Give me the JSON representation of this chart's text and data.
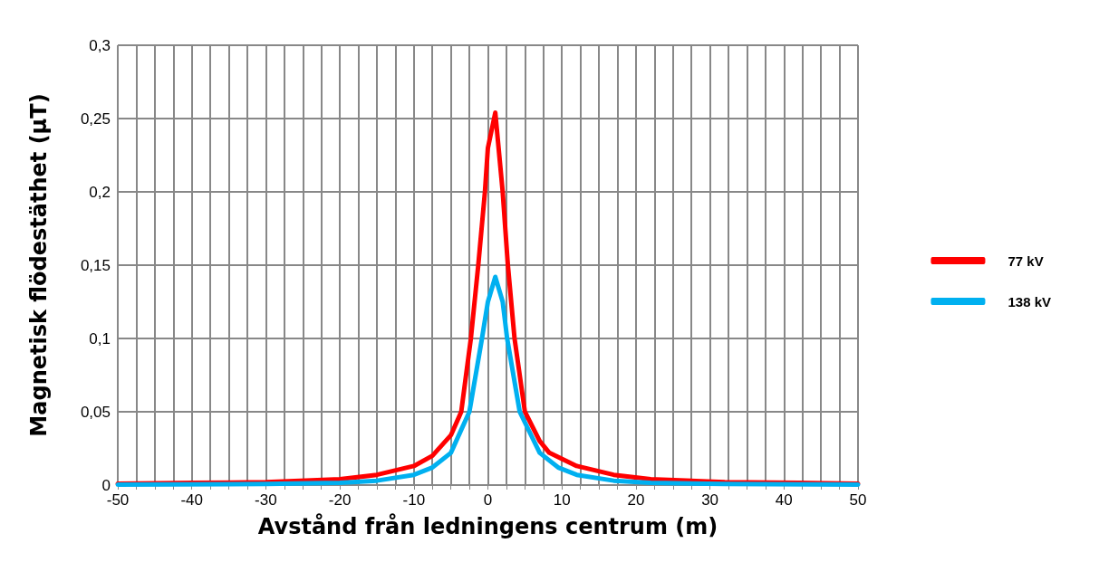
{
  "chart_data": {
    "type": "line",
    "xlabel": "Avstånd från ledningens centrum (m)",
    "ylabel": "Magnetisk flödestäthet (µT)",
    "xlim": [
      -50,
      50
    ],
    "xticks": [
      -50,
      {
        "value": -47.5,
        "label": null
      },
      {
        "value": -45,
        "label": null
      },
      {
        "value": -42.5,
        "label": null
      },
      -40,
      {
        "value": -37.5,
        "label": null
      },
      {
        "value": -35,
        "label": null
      },
      {
        "value": -32.5,
        "label": null
      },
      -30,
      {
        "value": -27.5,
        "label": null
      },
      {
        "value": -25,
        "label": null
      },
      {
        "value": -22.5,
        "label": null
      },
      -20,
      {
        "value": -17.5,
        "label": null
      },
      {
        "value": -15,
        "label": null
      },
      {
        "value": -12.5,
        "label": null
      },
      -10,
      {
        "value": -7.5,
        "label": null
      },
      {
        "value": -5,
        "label": null
      },
      {
        "value": -2.5,
        "label": null
      },
      0,
      {
        "value": 2.5,
        "label": null
      },
      {
        "value": 5,
        "label": null
      },
      {
        "value": 7.5,
        "label": null
      },
      10,
      {
        "value": 12.5,
        "label": null
      },
      {
        "value": 15,
        "label": null
      },
      {
        "value": 17.5,
        "label": null
      },
      20,
      {
        "value": 22.5,
        "label": null
      },
      {
        "value": 25,
        "label": null
      },
      {
        "value": 27.5,
        "label": null
      },
      30,
      {
        "value": 32.5,
        "label": null
      },
      {
        "value": 35,
        "label": null
      },
      {
        "value": 37.5,
        "label": null
      },
      40,
      {
        "value": 42.5,
        "label": null
      },
      {
        "value": 45,
        "label": null
      },
      {
        "value": 47.5,
        "label": null
      },
      50
    ],
    "ylim": [
      0,
      0.3
    ],
    "yticks": [
      0,
      {
        "value": 0.05,
        "label": "0,05"
      },
      {
        "value": 0.1,
        "label": "0,1"
      },
      {
        "value": 0.15,
        "label": "0,15"
      },
      {
        "value": 0.2,
        "label": "0,2"
      },
      {
        "value": 0.25,
        "label": "0,25"
      },
      {
        "value": 0.3,
        "label": "0,3"
      }
    ],
    "grid": true,
    "legend": "right",
    "marker": "none",
    "line_style": "solid",
    "series": [
      {
        "name": "77 kV",
        "color": "#ff0000",
        "x": [
          -50,
          -40,
          -30,
          -20,
          -15,
          -10,
          -7.5,
          -5,
          -3.6,
          -2.3,
          -1.3,
          -0.4,
          0,
          1,
          2,
          2.7,
          3.6,
          5,
          7,
          8.3,
          12,
          17,
          22,
          32,
          42,
          50
        ],
        "values": [
          0.001,
          0.0015,
          0.002,
          0.004,
          0.007,
          0.013,
          0.02,
          0.034,
          0.05,
          0.1,
          0.15,
          0.2,
          0.23,
          0.254,
          0.2,
          0.15,
          0.1,
          0.05,
          0.03,
          0.022,
          0.013,
          0.007,
          0.004,
          0.002,
          0.0015,
          0.001
        ]
      },
      {
        "name": "138 kV",
        "color": "#00b0f0",
        "x": [
          -50,
          -30,
          -20,
          -15,
          -10,
          -7.5,
          -5,
          -2.5,
          -0.8,
          0,
          1,
          2,
          2.6,
          4.3,
          7,
          9.5,
          12,
          17,
          22,
          32,
          50
        ],
        "values": [
          0.0003,
          0.0007,
          0.0015,
          0.003,
          0.007,
          0.012,
          0.022,
          0.05,
          0.1,
          0.125,
          0.142,
          0.125,
          0.1,
          0.05,
          0.022,
          0.012,
          0.007,
          0.003,
          0.0015,
          0.0007,
          0.0003
        ]
      }
    ]
  }
}
